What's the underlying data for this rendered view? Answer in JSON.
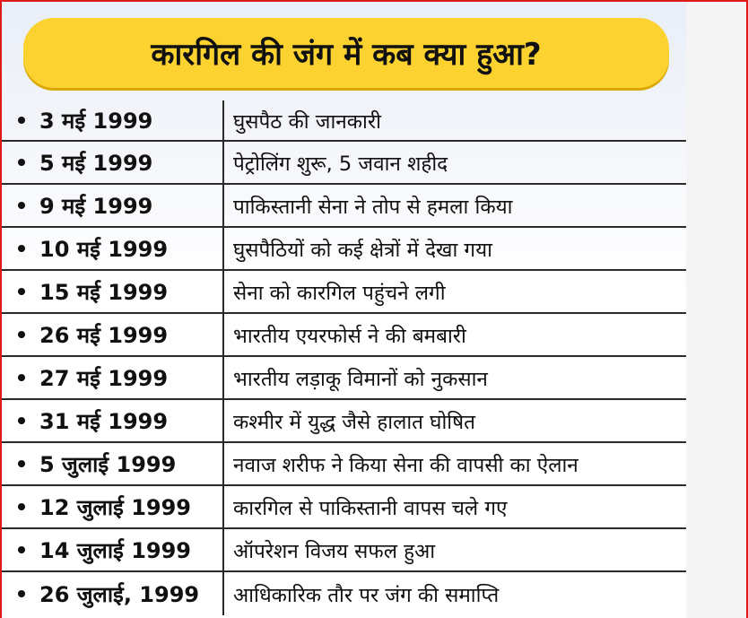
{
  "title": "कारगिल की जंग में कब क्या हुआ?",
  "timeline": [
    {
      "date": "3 मई 1999",
      "event": "घुसपैठ की जानकारी"
    },
    {
      "date": "5 मई 1999",
      "event": "पेट्रोलिंग शुरू, 5 जवान शहीद"
    },
    {
      "date": "9 मई 1999",
      "event": "पाकिस्तानी सेना ने तोप से हमला किया"
    },
    {
      "date": "10 मई 1999",
      "event": "घुसपैठियों को कई क्षेत्रों में देखा गया"
    },
    {
      "date": "15 मई 1999",
      "event": "सेना को कारगिल पहुंचने लगी"
    },
    {
      "date": "26 मई 1999",
      "event": "भारतीय एयरफोर्स ने की बमबारी"
    },
    {
      "date": "27 मई 1999",
      "event": "भारतीय लड़ाकू विमानों को नुकसान"
    },
    {
      "date": "31 मई 1999",
      "event": "कश्मीर में युद्ध जैसे हालात घोषित"
    },
    {
      "date": "5 जुलाई 1999",
      "event": "नवाज शरीफ ने किया सेना की वापसी का ऐलान"
    },
    {
      "date": "12 जुलाई 1999",
      "event": "कारगिल से पाकिस्तानी वापस चले गए"
    },
    {
      "date": "14 जुलाई 1999",
      "event": "ऑपरेशन विजय सफल हुआ"
    },
    {
      "date": "26 जुलाई, 1999",
      "event": "आधिकारिक तौर पर जंग की समाप्ति"
    }
  ],
  "colors": {
    "frame_border": "#e01919",
    "title_background": "#fbd230",
    "text": "#111111",
    "grid_line": "#2a2a2a"
  }
}
